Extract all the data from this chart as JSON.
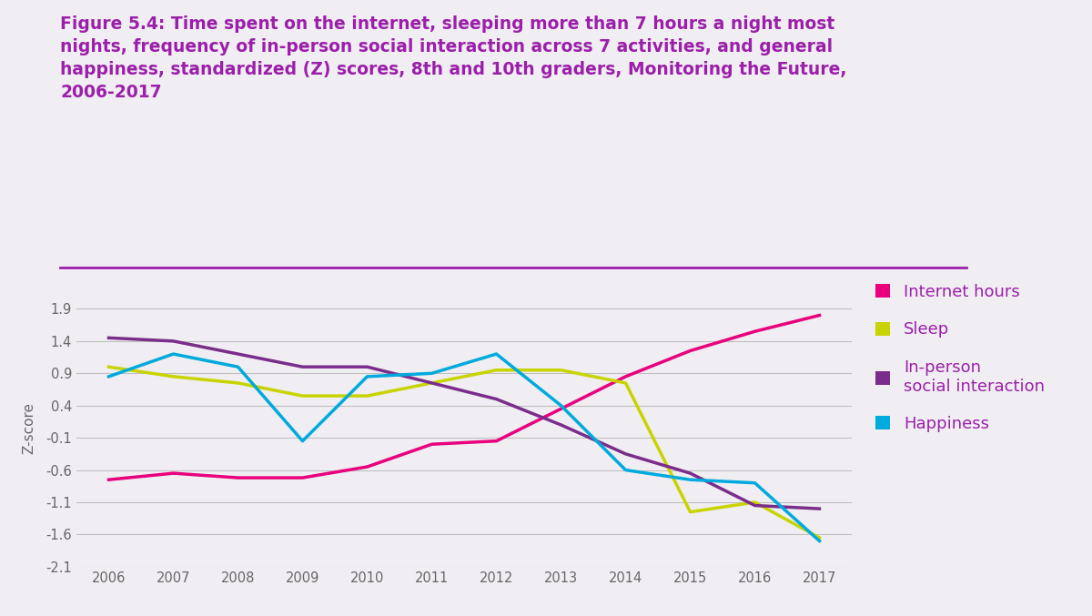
{
  "years": [
    2006,
    2007,
    2008,
    2009,
    2010,
    2011,
    2012,
    2013,
    2014,
    2015,
    2016,
    2017
  ],
  "internet_hours": [
    -0.75,
    -0.65,
    -0.72,
    -0.72,
    -0.55,
    -0.2,
    -0.15,
    0.35,
    0.85,
    1.25,
    1.55,
    1.8
  ],
  "sleep": [
    1.0,
    0.85,
    0.75,
    0.55,
    0.55,
    0.75,
    0.95,
    0.95,
    0.75,
    -1.25,
    -1.1,
    -1.65
  ],
  "in_person": [
    1.45,
    1.4,
    1.2,
    1.0,
    1.0,
    0.75,
    0.5,
    0.1,
    -0.35,
    -0.65,
    -1.15,
    -1.2
  ],
  "happiness": [
    0.85,
    1.2,
    1.0,
    -0.15,
    0.85,
    0.9,
    1.2,
    0.4,
    -0.6,
    -0.75,
    -0.8,
    -1.7
  ],
  "colors": {
    "internet_hours": "#e8007d",
    "sleep": "#c8d400",
    "in_person": "#7b2d8b",
    "happiness": "#00aadd"
  },
  "title_line1": "Figure 5.4: Time spent on the internet, sleeping more than 7 hours a night most",
  "title_line2": "nights, frequency of in-person social interaction across 7 activities, and general",
  "title_line3": "happiness, standardized (Z) scores, 8th and 10th graders, Monitoring the Future,",
  "title_line4": "2006-2017",
  "title_color": "#9b1faa",
  "ylabel": "Z-score",
  "ylim": [
    -2.1,
    2.2
  ],
  "yticks": [
    -2.1,
    -1.6,
    -1.1,
    -0.6,
    -0.1,
    0.4,
    0.9,
    1.4,
    1.9
  ],
  "background_color": "#f0eef2",
  "separator_color": "#9b1faa",
  "legend_labels": [
    "Internet hours",
    "Sleep",
    "In-person\nsocial interaction",
    "Happiness"
  ],
  "legend_colors": [
    "#e8007d",
    "#c8d400",
    "#7b2d8b",
    "#00aadd"
  ]
}
